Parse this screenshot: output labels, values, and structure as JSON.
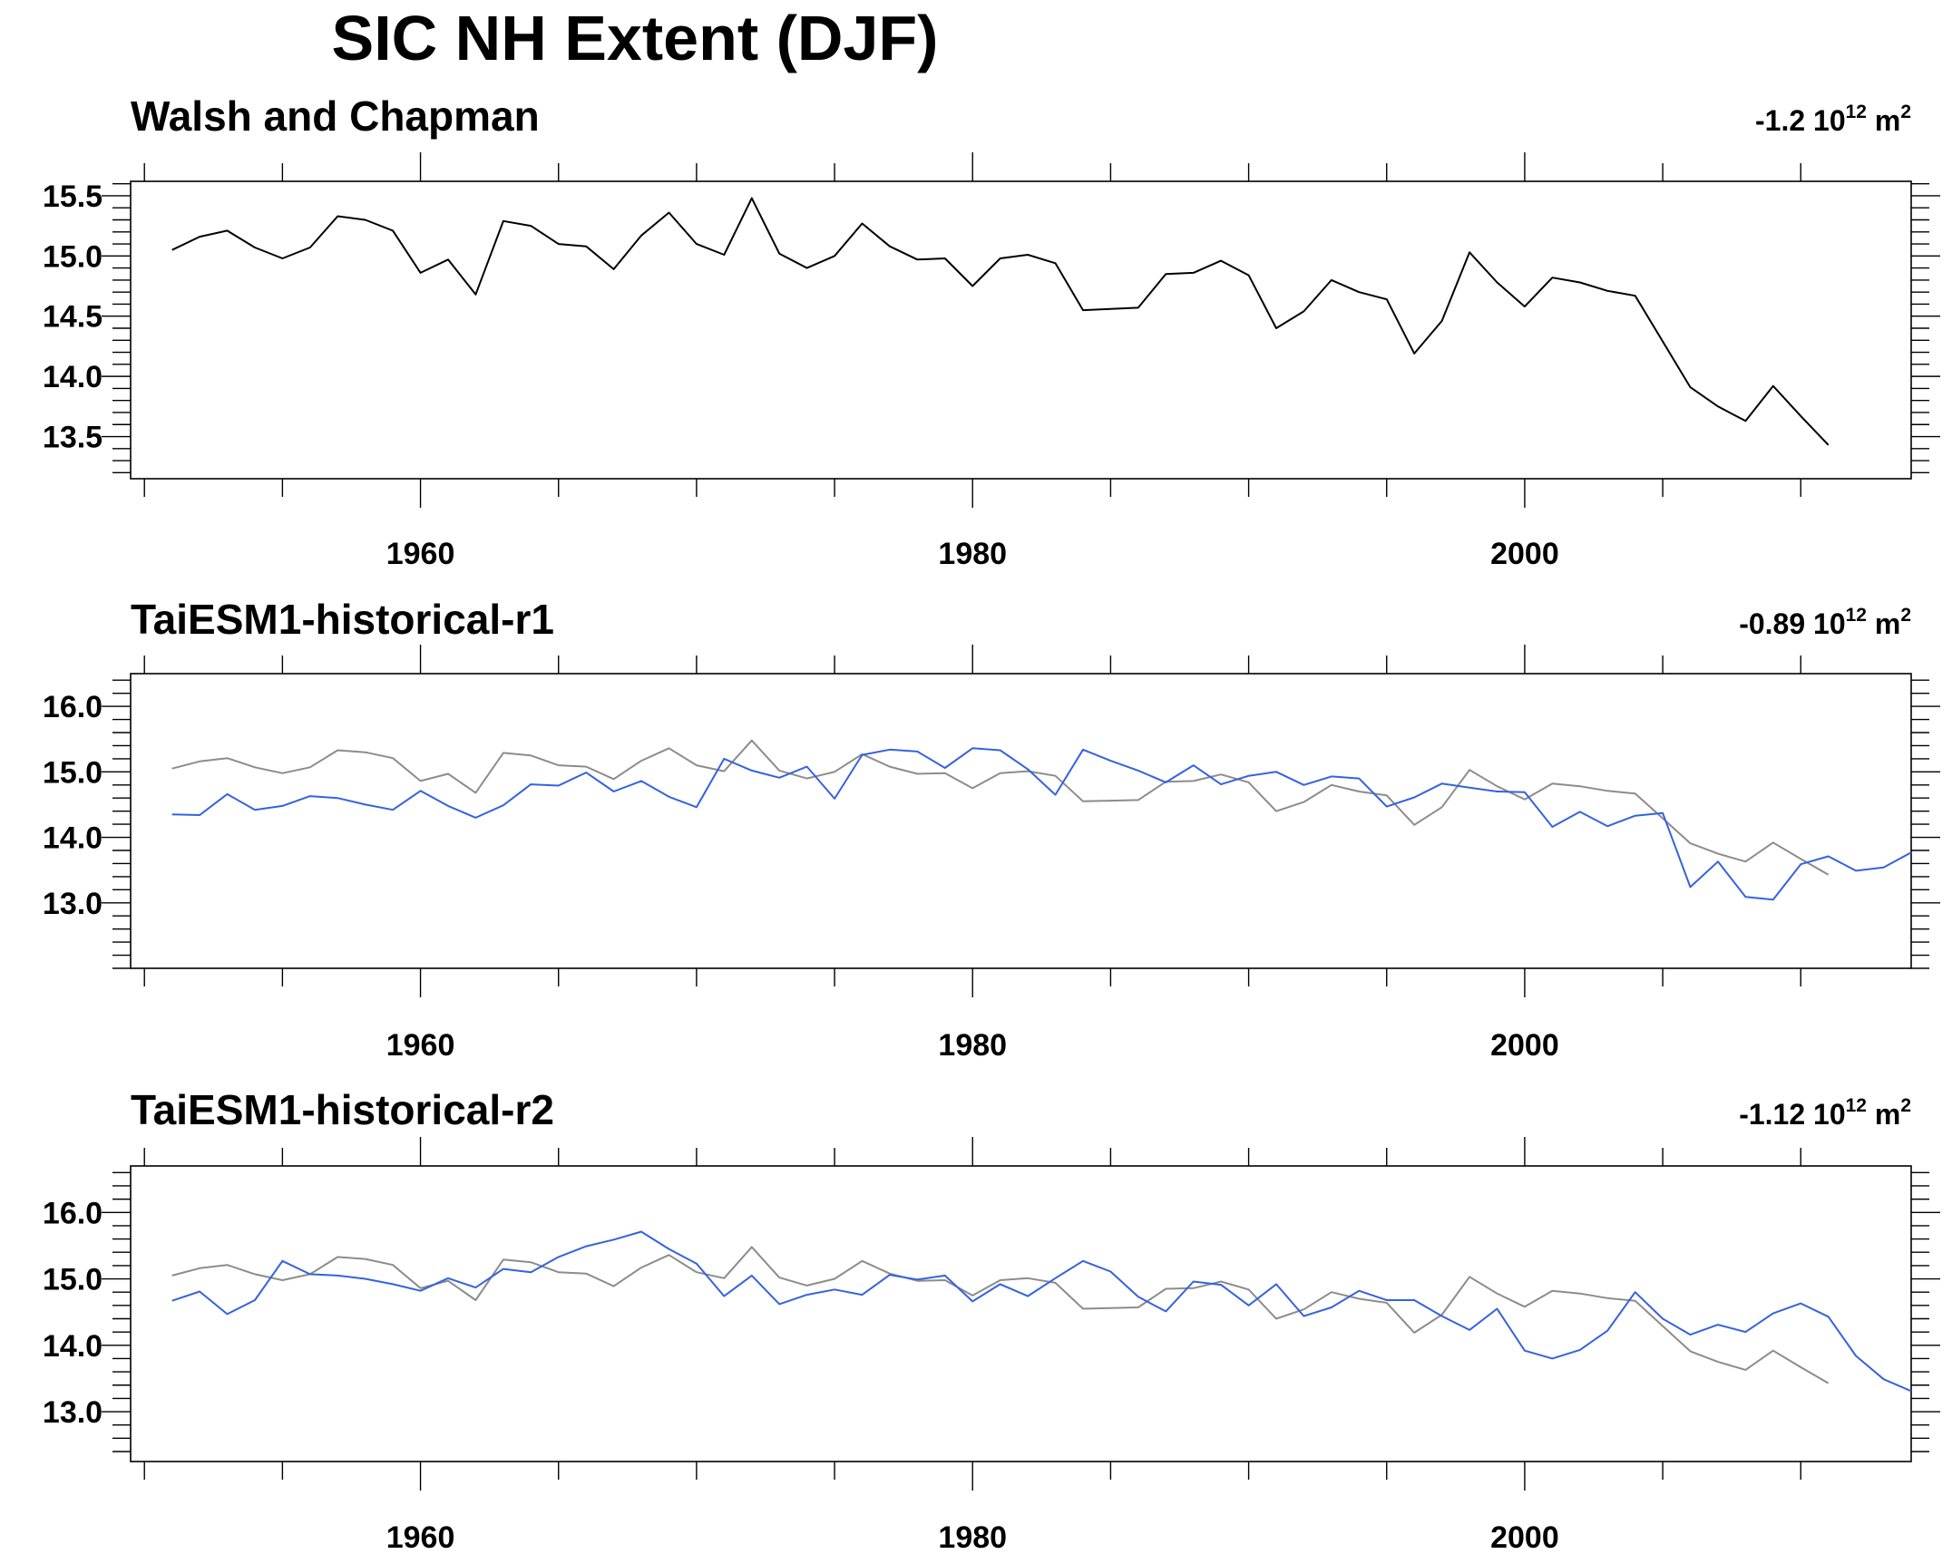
{
  "figure_title": "SIC NH Extent (DJF)",
  "colors": {
    "observation": "#000000",
    "observation_overlay": "#8c8c8c",
    "model": "#3462e0",
    "axes": "#000000"
  },
  "chart_data": [
    {
      "type": "line",
      "title": "Walsh and Chapman",
      "trend_value": "-1.2",
      "trend_base": "10",
      "trend_exp": "12",
      "trend_unit": "m",
      "trend_unit_exp": "2",
      "xlim": [
        1949.5,
        2014.0
      ],
      "ylim": [
        13.15,
        15.62
      ],
      "x_ticks": [
        1960,
        1980,
        2000
      ],
      "y_ticks": [
        13.5,
        14.0,
        14.5,
        15.0,
        15.5
      ],
      "y_tick_labels": [
        "13.5",
        "14.0",
        "14.5",
        "15.0",
        "15.5"
      ],
      "series": [
        {
          "role": "observation",
          "x_start": 1951,
          "values": [
            15.05,
            15.16,
            15.21,
            15.07,
            14.98,
            15.07,
            15.33,
            15.3,
            15.21,
            14.86,
            14.97,
            14.68,
            15.29,
            15.25,
            15.1,
            15.08,
            14.89,
            15.17,
            15.36,
            15.1,
            15.01,
            15.48,
            15.02,
            14.9,
            15.0,
            15.27,
            15.08,
            14.97,
            14.98,
            14.75,
            14.98,
            15.01,
            14.94,
            14.55,
            14.56,
            14.57,
            14.85,
            14.86,
            14.96,
            14.84,
            14.4,
            14.54,
            14.8,
            14.7,
            14.64,
            14.19,
            14.46,
            15.03,
            14.78,
            14.58,
            14.82,
            14.78,
            14.71,
            14.67,
            14.29,
            13.91,
            13.75,
            13.63,
            13.92,
            13.67,
            13.43
          ]
        }
      ]
    },
    {
      "type": "line",
      "title": "TaiESM1-historical-r1",
      "trend_value": "-0.89",
      "trend_base": "10",
      "trend_exp": "12",
      "trend_unit": "m",
      "trend_unit_exp": "2",
      "xlim": [
        1949.5,
        2014.0
      ],
      "ylim": [
        12.0,
        16.5
      ],
      "x_ticks": [
        1960,
        1980,
        2000
      ],
      "y_ticks": [
        13.0,
        14.0,
        15.0,
        16.0
      ],
      "y_tick_labels": [
        "13.0",
        "14.0",
        "15.0",
        "16.0"
      ],
      "series": [
        {
          "role": "observation_overlay",
          "x_start": 1951,
          "values": [
            15.05,
            15.16,
            15.21,
            15.07,
            14.98,
            15.07,
            15.33,
            15.3,
            15.21,
            14.86,
            14.97,
            14.68,
            15.29,
            15.25,
            15.1,
            15.08,
            14.89,
            15.17,
            15.36,
            15.1,
            15.01,
            15.48,
            15.02,
            14.9,
            15.0,
            15.27,
            15.08,
            14.97,
            14.98,
            14.75,
            14.98,
            15.01,
            14.94,
            14.55,
            14.56,
            14.57,
            14.85,
            14.86,
            14.96,
            14.84,
            14.4,
            14.54,
            14.8,
            14.7,
            14.64,
            14.19,
            14.46,
            15.03,
            14.78,
            14.58,
            14.82,
            14.78,
            14.71,
            14.67,
            14.29,
            13.91,
            13.75,
            13.63,
            13.92,
            13.67,
            13.43
          ]
        },
        {
          "role": "model",
          "x_start": 1951,
          "values": [
            14.35,
            14.34,
            14.66,
            14.42,
            14.48,
            14.63,
            14.6,
            14.5,
            14.42,
            14.71,
            14.48,
            14.3,
            14.49,
            14.81,
            14.79,
            14.99,
            14.7,
            14.86,
            14.62,
            14.46,
            15.2,
            15.02,
            14.91,
            15.08,
            14.59,
            15.26,
            15.34,
            15.31,
            15.06,
            15.36,
            15.33,
            15.04,
            14.65,
            15.34,
            15.17,
            15.02,
            14.84,
            15.1,
            14.81,
            14.94,
            15.0,
            14.8,
            14.93,
            14.9,
            14.47,
            14.61,
            14.82,
            14.76,
            14.7,
            14.69,
            14.16,
            14.39,
            14.17,
            14.33,
            14.37,
            13.24,
            13.63,
            13.09,
            13.05,
            13.59,
            13.71,
            13.49,
            13.54,
            13.77
          ]
        }
      ]
    },
    {
      "type": "line",
      "title": "TaiESM1-historical-r2",
      "trend_value": "-1.12",
      "trend_base": "10",
      "trend_exp": "12",
      "trend_unit": "m",
      "trend_unit_exp": "2",
      "xlim": [
        1949.5,
        2014.0
      ],
      "ylim": [
        12.25,
        16.7
      ],
      "x_ticks": [
        1960,
        1980,
        2000
      ],
      "y_ticks": [
        13.0,
        14.0,
        15.0,
        16.0
      ],
      "y_tick_labels": [
        "13.0",
        "14.0",
        "15.0",
        "16.0"
      ],
      "series": [
        {
          "role": "observation_overlay",
          "x_start": 1951,
          "values": [
            15.05,
            15.16,
            15.21,
            15.07,
            14.98,
            15.07,
            15.33,
            15.3,
            15.21,
            14.86,
            14.97,
            14.68,
            15.29,
            15.25,
            15.1,
            15.08,
            14.89,
            15.17,
            15.36,
            15.1,
            15.01,
            15.48,
            15.02,
            14.9,
            15.0,
            15.27,
            15.08,
            14.97,
            14.98,
            14.75,
            14.98,
            15.01,
            14.94,
            14.55,
            14.56,
            14.57,
            14.85,
            14.86,
            14.96,
            14.84,
            14.4,
            14.54,
            14.8,
            14.7,
            14.64,
            14.19,
            14.46,
            15.03,
            14.78,
            14.58,
            14.82,
            14.78,
            14.71,
            14.67,
            14.29,
            13.91,
            13.75,
            13.63,
            13.92,
            13.67,
            13.43
          ]
        },
        {
          "role": "model",
          "x_start": 1951,
          "values": [
            14.67,
            14.81,
            14.47,
            14.68,
            15.27,
            15.07,
            15.05,
            15.0,
            14.92,
            14.82,
            15.01,
            14.87,
            15.15,
            15.1,
            15.33,
            15.49,
            15.59,
            15.71,
            15.45,
            15.23,
            14.74,
            15.05,
            14.62,
            14.76,
            14.84,
            14.76,
            15.06,
            14.99,
            15.05,
            14.66,
            14.92,
            14.74,
            15.01,
            15.27,
            15.11,
            14.73,
            14.51,
            14.96,
            14.91,
            14.6,
            14.92,
            14.44,
            14.57,
            14.82,
            14.68,
            14.68,
            14.44,
            14.23,
            14.55,
            13.92,
            13.8,
            13.93,
            14.22,
            14.8,
            14.4,
            14.16,
            14.31,
            14.2,
            14.48,
            14.63,
            14.43,
            13.84,
            13.49,
            13.31
          ]
        }
      ]
    }
  ]
}
